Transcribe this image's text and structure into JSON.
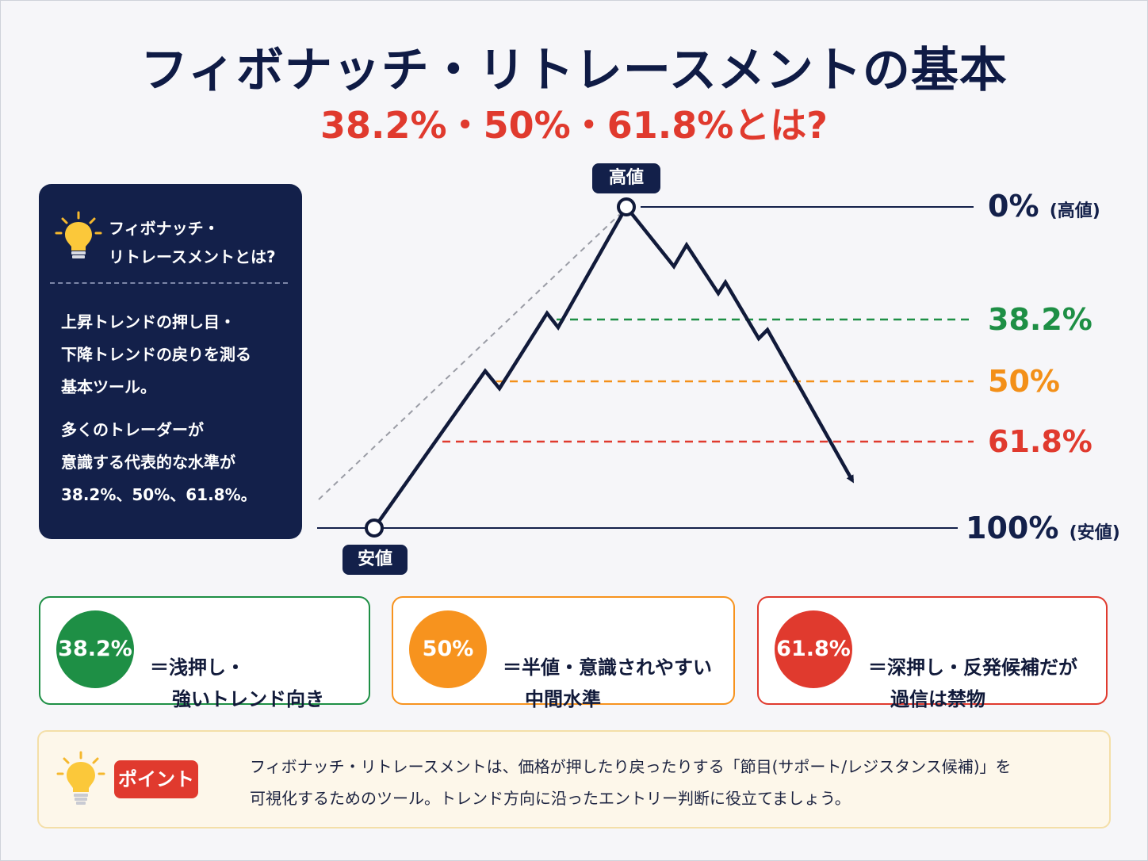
{
  "title": "フィボナッチ・リトレースメントの基本",
  "subtitle": "38.2%・50%・61.8%とは?",
  "info_box": {
    "icon": "lightbulb-icon",
    "title_line1": "フィボナッチ・",
    "title_line2": "リトレースメントとは?",
    "para1": [
      "上昇トレンドの押し目・",
      "下降トレンドの戻りを測る",
      "基本ツール。"
    ],
    "para2": [
      "多くのトレーダーが",
      "意識する代表的な水準が",
      "38.2%、50%、61.8%。"
    ]
  },
  "diagram": {
    "high_tag": "高値",
    "low_tag": "安値",
    "levels": [
      {
        "pct": "0%",
        "note": "(高値)",
        "color": "#13204a"
      },
      {
        "pct": "38.2%",
        "note": "",
        "color": "#1e8f45"
      },
      {
        "pct": "50%",
        "note": "",
        "color": "#f39019"
      },
      {
        "pct": "61.8%",
        "note": "",
        "color": "#e03a2e"
      },
      {
        "pct": "100%",
        "note": "(安値)",
        "color": "#13204a"
      }
    ]
  },
  "cards": [
    {
      "badge": "38.2%",
      "line1": "＝浅押し・",
      "line2": "強いトレンド向き",
      "color": "#1e8f45"
    },
    {
      "badge": "50%",
      "line1": "＝半値・意識されやすい",
      "line2": "中間水準",
      "color": "#f7931e"
    },
    {
      "badge": "61.8%",
      "line1": "＝深押し・反発候補だが",
      "line2": "過信は禁物",
      "color": "#e03a2e"
    }
  ],
  "point": {
    "icon": "lightbulb-icon",
    "label": "ポイント",
    "line1": "フィボナッチ・リトレースメントは、価格が押したり戻ったりする「節目(サポート/レジスタンス候補)」を",
    "line2": "可視化するためのツール。トレンド方向に沿ったエントリー判断に役立てましょう。"
  }
}
